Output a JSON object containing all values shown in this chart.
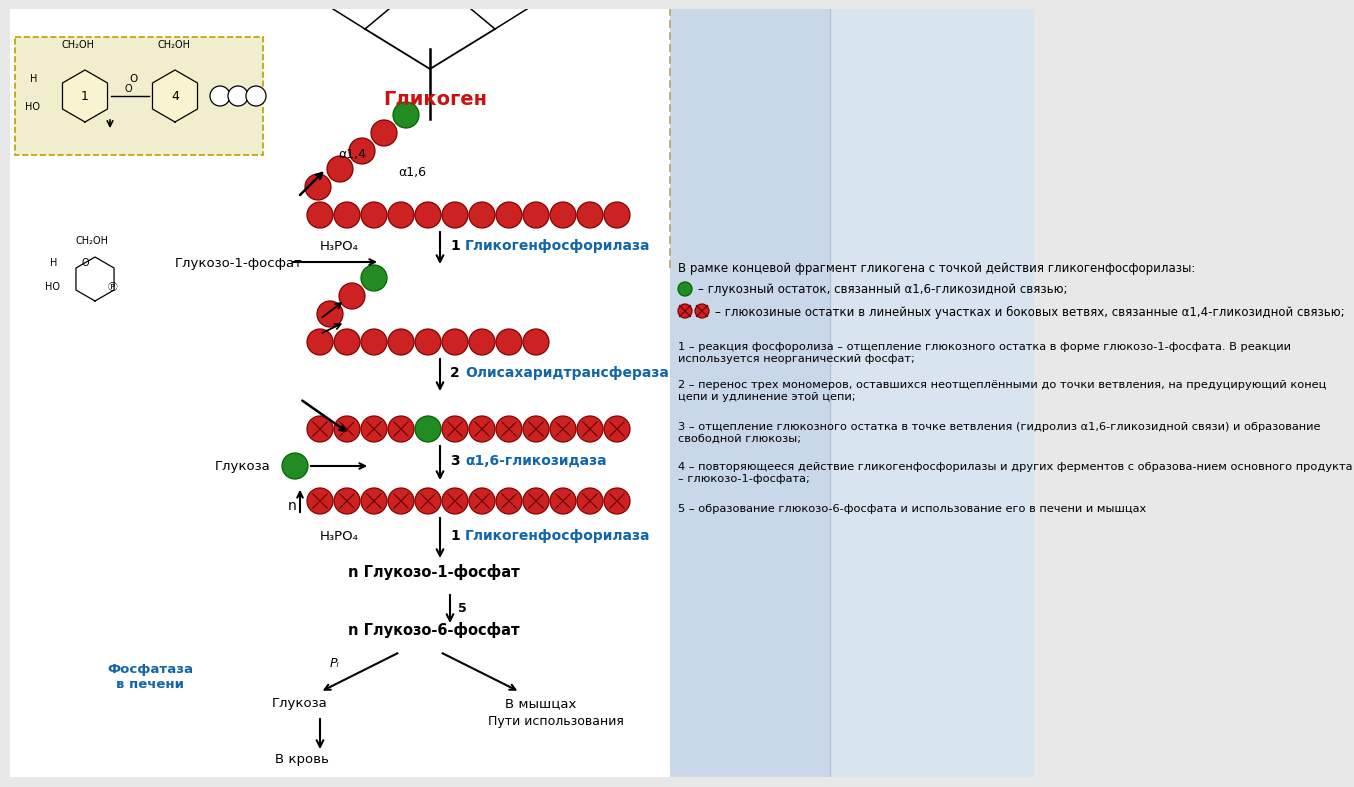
{
  "bg_color": "#f0f0f0",
  "right_panel_color1": "#c8d8e8",
  "right_panel_color2": "#d8e5f0",
  "yellow_box_color": "#f0eecc",
  "title_glycogen": "Гликоген",
  "title_glycogen_color": "#cc1111",
  "enzyme1": "Гликогенфосфорилаза",
  "enzyme2": "Олисахаридтрансфераза",
  "enzyme3": "α1,6-гликозидаза",
  "enzyme1b": "Гликогенфосфорилаза",
  "enzyme_color": "#1166aa",
  "phosphatase_label": "Фосфатаза\nв печени",
  "phosphatase_color": "#1166aa",
  "label_g1p": "Глукозо-1-фосфат",
  "label_ng1p": "n Глукозо-1-фосфат",
  "label_ng6p": "n Глукозо-6-фосфат",
  "label_glucose": "Глукоза",
  "label_blood": "В кровь",
  "label_muscles": "В мышцах",
  "label_use": "Пути использования",
  "label_h3po4": "H₃PO₄",
  "label_n": "n",
  "label_pi": "Pᵢ",
  "label_step5": "5",
  "label_step1": "1",
  "label_step1b": "1",
  "label_step2": "2",
  "label_step3": "3",
  "label_a14": "α1,4",
  "label_a16": "α1,6",
  "red_color": "#cc2222",
  "dark_red_color": "#880000",
  "green_color": "#228B22",
  "text_color": "#111111",
  "desc_header": "В рамке концевой фрагмент гликогена с точкой действия гликогенфосфорилазы:",
  "legend_text1": "– глукозный остаток, связанный α1,6-гликозидной связью;",
  "legend_text2": "– глюкозиные остатки в линейных участках и боковых ветвях, связанные α1,4-гликозидной связью;",
  "desc1": "1 – реакция фосфоролиза – отщепление глюкозного остатка в форме глюкозо-1-фосфата. В реакции используется неорганический фосфат;",
  "desc2": "2 – перенос трех мономеров, оставшихся неотщеплёнными до точки ветвления, на предуцирующий конец цепи и удлинение этой цепи;",
  "desc3": "3 – отщепление глюкозного остатка в точке ветвления (гидролиз α1,6-гликозидной связи) и образование свободной глюкозы;",
  "desc4": "4 – повторяющееся действие гликогенфосфорилазы и других ферментов с образова-нием основного продукта – глюкозо-1-фосфата;",
  "desc5": "5 – образование глюкозо-6-фосфата и использование его в печени и мышцах"
}
